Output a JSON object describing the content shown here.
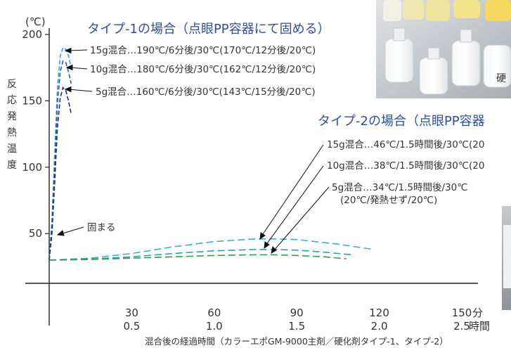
{
  "chart_data": {
    "type": "line",
    "title": "",
    "ylabel": "反応発熱温度",
    "y_unit": "(℃)",
    "xlabel": "混合後の経過時間（カラーエポGM-9000主剤／硬化剤タイプ-1、タイプ-2）",
    "x_unit_minutes": "分",
    "x_unit_hours": "時間",
    "xlim": [
      0,
      150
    ],
    "ylim": [
      30,
      200
    ],
    "x_ticks": [
      {
        "min": "30",
        "hr": "0.5",
        "value": 30
      },
      {
        "min": "60",
        "hr": "1.0",
        "value": 60
      },
      {
        "min": "90",
        "hr": "1.5",
        "value": 90
      },
      {
        "min": "120",
        "hr": "2.0",
        "value": 120
      },
      {
        "min": "150",
        "hr": "2.5",
        "value": 150
      }
    ],
    "y_ticks": [
      {
        "label": "200",
        "value": 200
      },
      {
        "label": "150",
        "value": 150
      },
      {
        "label": "100",
        "value": 100
      },
      {
        "label": "50",
        "value": 50
      }
    ],
    "type1": {
      "title": "タイプ-1の場合（点眼PP容器にて固める）",
      "series": [
        {
          "name": "15g混合…190℃/6分後/30℃(170℃/12分後/20℃)",
          "color": "#3aa0d8",
          "x": [
            0,
            1,
            2,
            3,
            4,
            5,
            6,
            7,
            8
          ],
          "y": [
            30,
            60,
            110,
            160,
            184,
            190,
            189,
            184,
            175
          ]
        },
        {
          "name": "10g混合…180℃/6分後/30℃(162℃/12分後/20℃)",
          "color": "#1e5fa8",
          "x": [
            0,
            1,
            2,
            3,
            4,
            5,
            6,
            7,
            8
          ],
          "y": [
            30,
            55,
            100,
            148,
            172,
            180,
            179,
            172,
            163
          ]
        },
        {
          "name": "5g混合…160℃/6分後/30℃(143℃/15分後/20℃)",
          "color": "#26306e",
          "x": [
            0,
            1,
            2,
            3,
            4,
            5,
            6,
            7,
            8
          ],
          "y": [
            30,
            50,
            88,
            130,
            152,
            160,
            158,
            150,
            140
          ]
        }
      ],
      "annotation": "固まる"
    },
    "type2": {
      "title": "タイプ-2の場合（点眼PP容器",
      "series": [
        {
          "name": "15g混合…46℃/1.5時間後/30℃(20",
          "color": "#3fb0c9",
          "x": [
            0,
            15,
            30,
            45,
            60,
            75,
            82,
            90,
            105,
            118
          ],
          "y": [
            30,
            31.5,
            35,
            40,
            44,
            46,
            46,
            45.5,
            42,
            38
          ]
        },
        {
          "name": "10g混合…38℃/1.5時間後/30℃(20",
          "color": "#2fa3a0",
          "x": [
            0,
            15,
            30,
            45,
            60,
            75,
            82,
            90,
            100,
            110
          ],
          "y": [
            30,
            30.8,
            32.5,
            35,
            37,
            38,
            38,
            37.5,
            36,
            34
          ]
        },
        {
          "name": "5g混合…34℃/1.5時間後/30℃",
          "sub": "(20℃/発熱せず/20℃)",
          "color": "#2e9a52",
          "x": [
            0,
            15,
            30,
            45,
            60,
            75,
            82,
            90,
            100,
            108
          ],
          "y": [
            30,
            30.5,
            31.5,
            32.5,
            33.5,
            34,
            34,
            33.5,
            32.5,
            31
          ]
        }
      ]
    }
  },
  "photo_top_text": "硬",
  "colors": {
    "title_blue": "#2d4f9e"
  }
}
